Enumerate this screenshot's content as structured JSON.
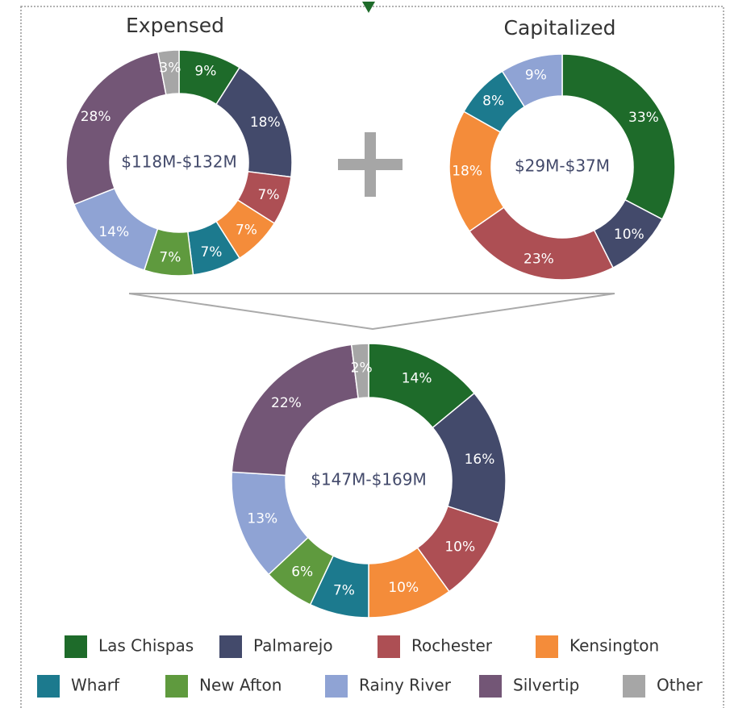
{
  "chart_data": [
    {
      "type": "donut",
      "title": "Expensed",
      "center_label": "$118M-$132M",
      "values": [
        9,
        18,
        7,
        7,
        7,
        7,
        14,
        28,
        3
      ],
      "value_labels": [
        "9%",
        "18%",
        "7%",
        "7%",
        "7%",
        "7%",
        "14%",
        "28%",
        "3%"
      ],
      "colors": [
        "#1e6b2a",
        "#434a6b",
        "#ad4f54",
        "#f48c3a",
        "#1c7a8e",
        "#5f9a3e",
        "#8fa3d4",
        "#735676",
        "#a6a6a6"
      ]
    },
    {
      "type": "donut",
      "title": "Capitalized",
      "center_label": "$29M-$37M",
      "values": [
        33,
        10,
        23,
        18,
        8,
        9
      ],
      "value_labels": [
        "33%",
        "10%",
        "23%",
        "18%",
        "8%",
        "9%"
      ],
      "colors": [
        "#1e6b2a",
        "#434a6b",
        "#ad4f54",
        "#f48c3a",
        "#1c7a8e",
        "#8fa3d4"
      ]
    },
    {
      "type": "donut",
      "center_label": "$147M-$169M",
      "categories": [
        "Las Chispas",
        "Palmarejo",
        "Rochester",
        "Kensington",
        "Wharf",
        "New Afton",
        "Rainy River",
        "Silvertip",
        "Other"
      ],
      "values": [
        14,
        16,
        10,
        10,
        7,
        6,
        13,
        22,
        2
      ],
      "value_labels": [
        "14%",
        "16%",
        "10%",
        "10%",
        "7%",
        "6%",
        "13%",
        "22%",
        "2%"
      ],
      "colors": [
        "#1e6b2a",
        "#434a6b",
        "#ad4f54",
        "#f48c3a",
        "#1c7a8e",
        "#5f9a3e",
        "#8fa3d4",
        "#735676",
        "#a6a6a6"
      ],
      "legend": true
    }
  ]
}
